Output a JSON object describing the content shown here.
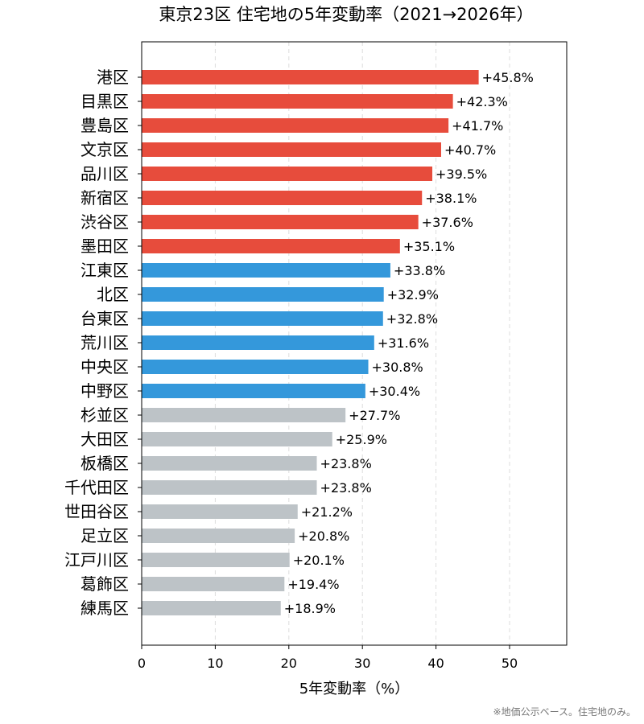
{
  "chart_data": {
    "type": "bar",
    "orientation": "horizontal",
    "title": "東京23区 住宅地の5年変動率（2021→2026年）",
    "xlabel": "5年変動率（%）",
    "ylabel": "",
    "xlim": [
      0,
      58
    ],
    "xticks": [
      0,
      10,
      20,
      30,
      40,
      50
    ],
    "grid": "x-dashed",
    "value_label_format": "+{v}%",
    "colors": {
      "top": "#e74c3c",
      "middle": "#3498db",
      "bottom": "#bdc3c7"
    },
    "categories": [
      "港区",
      "目黒区",
      "豊島区",
      "文京区",
      "品川区",
      "新宿区",
      "渋谷区",
      "墨田区",
      "江東区",
      "北区",
      "台東区",
      "荒川区",
      "中央区",
      "中野区",
      "杉並区",
      "大田区",
      "板橋区",
      "千代田区",
      "世田谷区",
      "足立区",
      "江戸川区",
      "葛飾区",
      "練馬区"
    ],
    "values": [
      45.8,
      42.3,
      41.7,
      40.7,
      39.5,
      38.1,
      37.6,
      35.1,
      33.8,
      32.9,
      32.8,
      31.6,
      30.8,
      30.4,
      27.7,
      25.9,
      23.8,
      23.8,
      21.2,
      20.8,
      20.1,
      19.4,
      18.9
    ],
    "groups": [
      "top",
      "top",
      "top",
      "top",
      "top",
      "top",
      "top",
      "top",
      "middle",
      "middle",
      "middle",
      "middle",
      "middle",
      "middle",
      "bottom",
      "bottom",
      "bottom",
      "bottom",
      "bottom",
      "bottom",
      "bottom",
      "bottom",
      "bottom"
    ]
  },
  "footnote": "※地価公示ベース。住宅地のみ。"
}
